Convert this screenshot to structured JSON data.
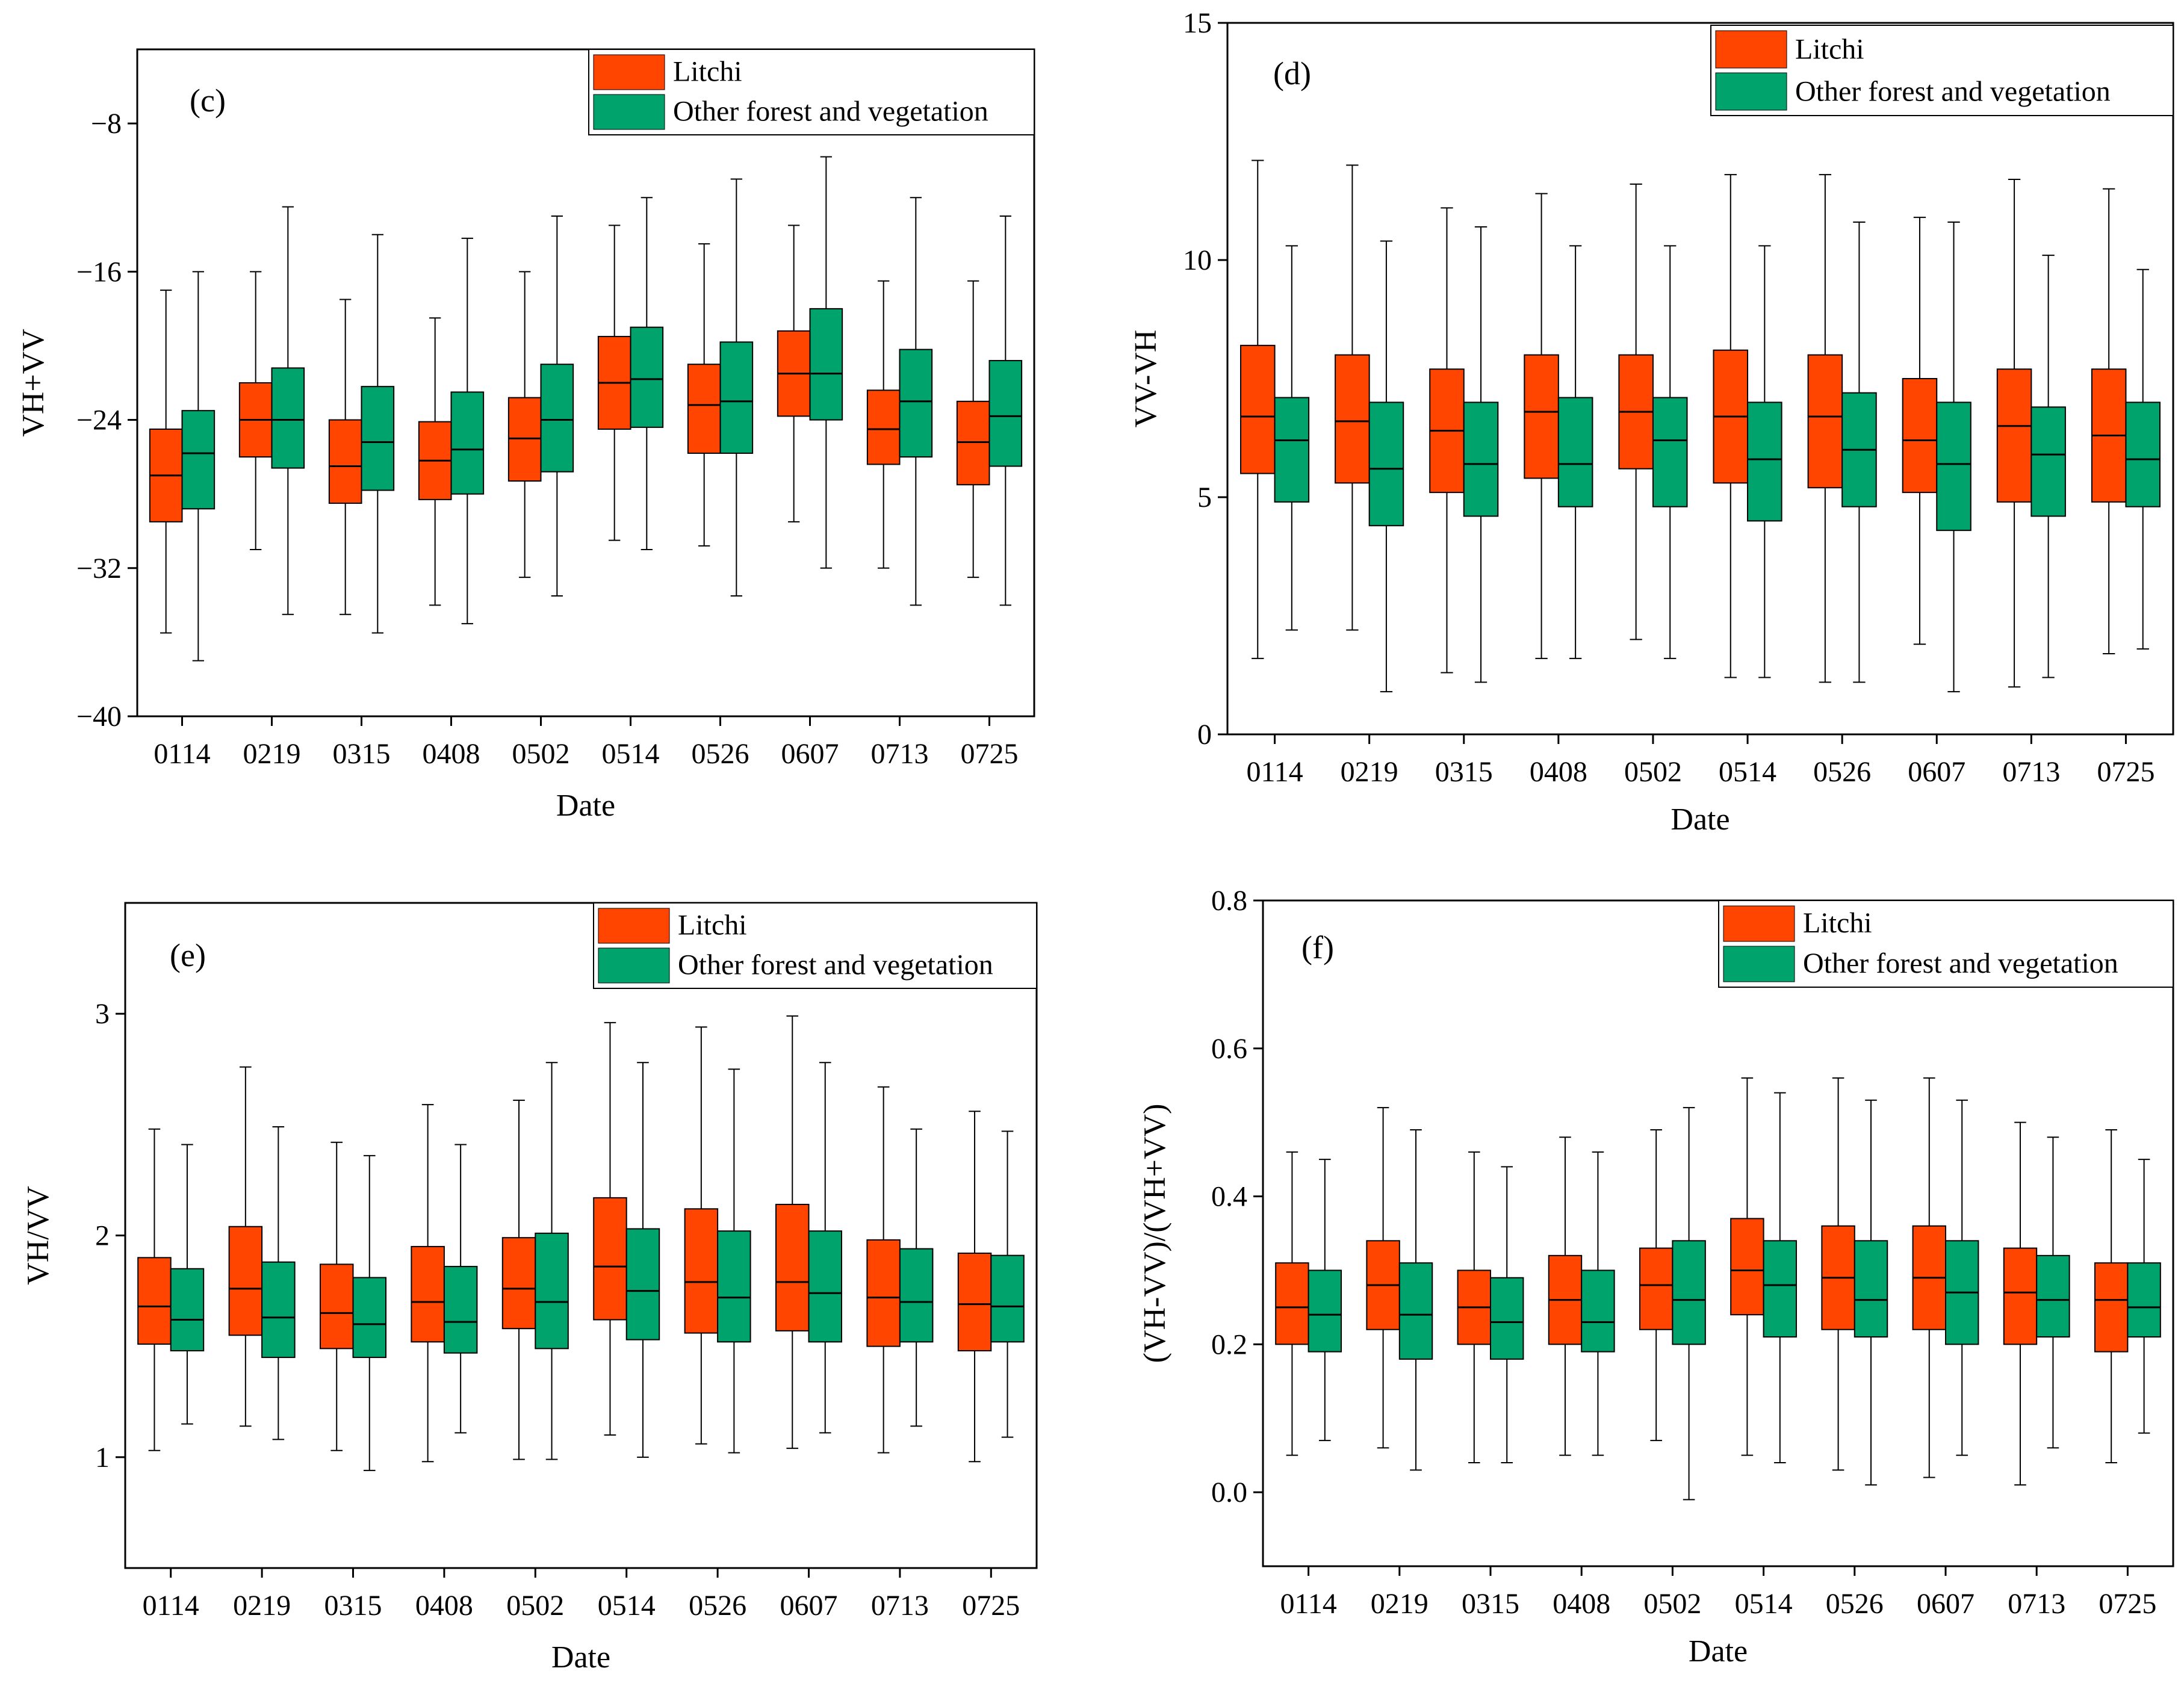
{
  "colors": {
    "litchi": "#FF4500",
    "other": "#00A36C",
    "axis": "#000000"
  },
  "legend": {
    "litchi": "Litchi",
    "other": "Other forest and vegetation"
  },
  "chart_data": [
    {
      "id": "c",
      "type": "box",
      "panel_label": "(c)",
      "xlabel": "Date",
      "ylabel": "VH+VV",
      "ylim": [
        -40,
        -4
      ],
      "yticks": [
        -40,
        -32,
        -24,
        -16,
        -8
      ],
      "categories": [
        "0114",
        "0219",
        "0315",
        "0408",
        "0502",
        "0514",
        "0526",
        "0607",
        "0713",
        "0725"
      ],
      "series": [
        {
          "name": "Litchi",
          "boxes": [
            {
              "min": -35.5,
              "q1": -29.5,
              "median": -27.0,
              "q3": -24.5,
              "max": -17.0
            },
            {
              "min": -31.0,
              "q1": -26.0,
              "median": -24.0,
              "q3": -22.0,
              "max": -16.0
            },
            {
              "min": -34.5,
              "q1": -28.5,
              "median": -26.5,
              "q3": -24.0,
              "max": -17.5
            },
            {
              "min": -34.0,
              "q1": -28.3,
              "median": -26.2,
              "q3": -24.1,
              "max": -18.5
            },
            {
              "min": -32.5,
              "q1": -27.3,
              "median": -25.0,
              "q3": -22.8,
              "max": -16.0
            },
            {
              "min": -30.5,
              "q1": -24.5,
              "median": -22.0,
              "q3": -19.5,
              "max": -13.5
            },
            {
              "min": -30.8,
              "q1": -25.8,
              "median": -23.2,
              "q3": -21.0,
              "max": -14.5
            },
            {
              "min": -29.5,
              "q1": -23.8,
              "median": -21.5,
              "q3": -19.2,
              "max": -13.5
            },
            {
              "min": -32.0,
              "q1": -26.4,
              "median": -24.5,
              "q3": -22.4,
              "max": -16.5
            },
            {
              "min": -32.5,
              "q1": -27.5,
              "median": -25.2,
              "q3": -23.0,
              "max": -16.5
            }
          ]
        },
        {
          "name": "Other forest and vegetation",
          "boxes": [
            {
              "min": -37.0,
              "q1": -28.8,
              "median": -25.8,
              "q3": -23.5,
              "max": -16.0
            },
            {
              "min": -34.5,
              "q1": -26.6,
              "median": -24.0,
              "q3": -21.2,
              "max": -12.5
            },
            {
              "min": -35.5,
              "q1": -27.8,
              "median": -25.2,
              "q3": -22.2,
              "max": -14.0
            },
            {
              "min": -35.0,
              "q1": -28.0,
              "median": -25.6,
              "q3": -22.5,
              "max": -14.2
            },
            {
              "min": -33.5,
              "q1": -26.8,
              "median": -24.0,
              "q3": -21.0,
              "max": -13.0
            },
            {
              "min": -31.0,
              "q1": -24.4,
              "median": -21.8,
              "q3": -19.0,
              "max": -12.0
            },
            {
              "min": -33.5,
              "q1": -25.8,
              "median": -23.0,
              "q3": -19.8,
              "max": -11.0
            },
            {
              "min": -32.0,
              "q1": -24.0,
              "median": -21.5,
              "q3": -18.0,
              "max": -9.8
            },
            {
              "min": -34.0,
              "q1": -26.0,
              "median": -23.0,
              "q3": -20.2,
              "max": -12.0
            },
            {
              "min": -34.0,
              "q1": -26.5,
              "median": -23.8,
              "q3": -20.8,
              "max": -13.0
            }
          ]
        }
      ]
    },
    {
      "id": "d",
      "type": "box",
      "panel_label": "(d)",
      "xlabel": "Date",
      "ylabel": "VV-VH",
      "ylim": [
        0,
        15
      ],
      "yticks": [
        0,
        5,
        10,
        15
      ],
      "categories": [
        "0114",
        "0219",
        "0315",
        "0408",
        "0502",
        "0514",
        "0526",
        "0607",
        "0713",
        "0725"
      ],
      "series": [
        {
          "name": "Litchi",
          "boxes": [
            {
              "min": 1.6,
              "q1": 5.5,
              "median": 6.7,
              "q3": 8.2,
              "max": 12.1
            },
            {
              "min": 2.2,
              "q1": 5.3,
              "median": 6.6,
              "q3": 8.0,
              "max": 12.0
            },
            {
              "min": 1.3,
              "q1": 5.1,
              "median": 6.4,
              "q3": 7.7,
              "max": 11.1
            },
            {
              "min": 1.6,
              "q1": 5.4,
              "median": 6.8,
              "q3": 8.0,
              "max": 11.4
            },
            {
              "min": 2.0,
              "q1": 5.6,
              "median": 6.8,
              "q3": 8.0,
              "max": 11.6
            },
            {
              "min": 1.2,
              "q1": 5.3,
              "median": 6.7,
              "q3": 8.1,
              "max": 11.8
            },
            {
              "min": 1.1,
              "q1": 5.2,
              "median": 6.7,
              "q3": 8.0,
              "max": 11.8
            },
            {
              "min": 1.9,
              "q1": 5.1,
              "median": 6.2,
              "q3": 7.5,
              "max": 10.9
            },
            {
              "min": 1.0,
              "q1": 4.9,
              "median": 6.5,
              "q3": 7.7,
              "max": 11.7
            },
            {
              "min": 1.7,
              "q1": 4.9,
              "median": 6.3,
              "q3": 7.7,
              "max": 11.5
            }
          ]
        },
        {
          "name": "Other forest and vegetation",
          "boxes": [
            {
              "min": 2.2,
              "q1": 4.9,
              "median": 6.2,
              "q3": 7.1,
              "max": 10.3
            },
            {
              "min": 0.9,
              "q1": 4.4,
              "median": 5.6,
              "q3": 7.0,
              "max": 10.4
            },
            {
              "min": 1.1,
              "q1": 4.6,
              "median": 5.7,
              "q3": 7.0,
              "max": 10.7
            },
            {
              "min": 1.6,
              "q1": 4.8,
              "median": 5.7,
              "q3": 7.1,
              "max": 10.3
            },
            {
              "min": 1.6,
              "q1": 4.8,
              "median": 6.2,
              "q3": 7.1,
              "max": 10.3
            },
            {
              "min": 1.2,
              "q1": 4.5,
              "median": 5.8,
              "q3": 7.0,
              "max": 10.3
            },
            {
              "min": 1.1,
              "q1": 4.8,
              "median": 6.0,
              "q3": 7.2,
              "max": 10.8
            },
            {
              "min": 0.9,
              "q1": 4.3,
              "median": 5.7,
              "q3": 7.0,
              "max": 10.8
            },
            {
              "min": 1.2,
              "q1": 4.6,
              "median": 5.9,
              "q3": 6.9,
              "max": 10.1
            },
            {
              "min": 1.8,
              "q1": 4.8,
              "median": 5.8,
              "q3": 7.0,
              "max": 9.8
            }
          ]
        }
      ]
    },
    {
      "id": "e",
      "type": "box",
      "panel_label": "(e)",
      "xlabel": "Date",
      "ylabel": "VH/VV",
      "ylim": [
        0.5,
        3.5
      ],
      "yticks": [
        1,
        2,
        3
      ],
      "categories": [
        "0114",
        "0219",
        "0315",
        "0408",
        "0502",
        "0514",
        "0526",
        "0607",
        "0713",
        "0725"
      ],
      "series": [
        {
          "name": "Litchi",
          "boxes": [
            {
              "min": 1.03,
              "q1": 1.51,
              "median": 1.68,
              "q3": 1.9,
              "max": 2.48
            },
            {
              "min": 1.14,
              "q1": 1.55,
              "median": 1.76,
              "q3": 2.04,
              "max": 2.76
            },
            {
              "min": 1.03,
              "q1": 1.49,
              "median": 1.65,
              "q3": 1.87,
              "max": 2.42
            },
            {
              "min": 0.98,
              "q1": 1.52,
              "median": 1.7,
              "q3": 1.95,
              "max": 2.59
            },
            {
              "min": 0.99,
              "q1": 1.58,
              "median": 1.76,
              "q3": 1.99,
              "max": 2.61
            },
            {
              "min": 1.1,
              "q1": 1.62,
              "median": 1.86,
              "q3": 2.17,
              "max": 2.96
            },
            {
              "min": 1.06,
              "q1": 1.56,
              "median": 1.79,
              "q3": 2.12,
              "max": 2.94
            },
            {
              "min": 1.04,
              "q1": 1.57,
              "median": 1.79,
              "q3": 2.14,
              "max": 2.99
            },
            {
              "min": 1.02,
              "q1": 1.5,
              "median": 1.72,
              "q3": 1.98,
              "max": 2.67
            },
            {
              "min": 0.98,
              "q1": 1.48,
              "median": 1.69,
              "q3": 1.92,
              "max": 2.56
            }
          ]
        },
        {
          "name": "Other forest and vegetation",
          "boxes": [
            {
              "min": 1.15,
              "q1": 1.48,
              "median": 1.62,
              "q3": 1.85,
              "max": 2.41
            },
            {
              "min": 1.08,
              "q1": 1.45,
              "median": 1.63,
              "q3": 1.88,
              "max": 2.49
            },
            {
              "min": 0.94,
              "q1": 1.45,
              "median": 1.6,
              "q3": 1.81,
              "max": 2.36
            },
            {
              "min": 1.11,
              "q1": 1.47,
              "median": 1.61,
              "q3": 1.86,
              "max": 2.41
            },
            {
              "min": 0.99,
              "q1": 1.49,
              "median": 1.7,
              "q3": 2.01,
              "max": 2.78
            },
            {
              "min": 1.0,
              "q1": 1.53,
              "median": 1.75,
              "q3": 2.03,
              "max": 2.78
            },
            {
              "min": 1.02,
              "q1": 1.52,
              "median": 1.72,
              "q3": 2.02,
              "max": 2.75
            },
            {
              "min": 1.11,
              "q1": 1.52,
              "median": 1.74,
              "q3": 2.02,
              "max": 2.78
            },
            {
              "min": 1.14,
              "q1": 1.52,
              "median": 1.7,
              "q3": 1.94,
              "max": 2.48
            },
            {
              "min": 1.09,
              "q1": 1.52,
              "median": 1.68,
              "q3": 1.91,
              "max": 2.47
            }
          ]
        }
      ]
    },
    {
      "id": "f",
      "type": "box",
      "panel_label": "(f)",
      "xlabel": "Date",
      "ylabel": "(VH-VV)/(VH+VV)",
      "ylim": [
        -0.1,
        0.8
      ],
      "yticks": [
        0.0,
        0.2,
        0.4,
        0.6,
        0.8
      ],
      "categories": [
        "0114",
        "0219",
        "0315",
        "0408",
        "0502",
        "0514",
        "0526",
        "0607",
        "0713",
        "0725"
      ],
      "series": [
        {
          "name": "Litchi",
          "boxes": [
            {
              "min": 0.05,
              "q1": 0.2,
              "median": 0.25,
              "q3": 0.31,
              "max": 0.46
            },
            {
              "min": 0.06,
              "q1": 0.22,
              "median": 0.28,
              "q3": 0.34,
              "max": 0.52
            },
            {
              "min": 0.04,
              "q1": 0.2,
              "median": 0.25,
              "q3": 0.3,
              "max": 0.46
            },
            {
              "min": 0.05,
              "q1": 0.2,
              "median": 0.26,
              "q3": 0.32,
              "max": 0.48
            },
            {
              "min": 0.07,
              "q1": 0.22,
              "median": 0.28,
              "q3": 0.33,
              "max": 0.49
            },
            {
              "min": 0.05,
              "q1": 0.24,
              "median": 0.3,
              "q3": 0.37,
              "max": 0.56
            },
            {
              "min": 0.03,
              "q1": 0.22,
              "median": 0.29,
              "q3": 0.36,
              "max": 0.56
            },
            {
              "min": 0.02,
              "q1": 0.22,
              "median": 0.29,
              "q3": 0.36,
              "max": 0.56
            },
            {
              "min": 0.01,
              "q1": 0.2,
              "median": 0.27,
              "q3": 0.33,
              "max": 0.5
            },
            {
              "min": 0.04,
              "q1": 0.19,
              "median": 0.26,
              "q3": 0.31,
              "max": 0.49
            }
          ]
        },
        {
          "name": "Other forest and vegetation",
          "boxes": [
            {
              "min": 0.07,
              "q1": 0.19,
              "median": 0.24,
              "q3": 0.3,
              "max": 0.45
            },
            {
              "min": 0.03,
              "q1": 0.18,
              "median": 0.24,
              "q3": 0.31,
              "max": 0.49
            },
            {
              "min": 0.04,
              "q1": 0.18,
              "median": 0.23,
              "q3": 0.29,
              "max": 0.44
            },
            {
              "min": 0.05,
              "q1": 0.19,
              "median": 0.23,
              "q3": 0.3,
              "max": 0.46
            },
            {
              "min": -0.01,
              "q1": 0.2,
              "median": 0.26,
              "q3": 0.34,
              "max": 0.52
            },
            {
              "min": 0.04,
              "q1": 0.21,
              "median": 0.28,
              "q3": 0.34,
              "max": 0.54
            },
            {
              "min": 0.01,
              "q1": 0.21,
              "median": 0.26,
              "q3": 0.34,
              "max": 0.53
            },
            {
              "min": 0.05,
              "q1": 0.2,
              "median": 0.27,
              "q3": 0.34,
              "max": 0.53
            },
            {
              "min": 0.06,
              "q1": 0.21,
              "median": 0.26,
              "q3": 0.32,
              "max": 0.48
            },
            {
              "min": 0.08,
              "q1": 0.21,
              "median": 0.25,
              "q3": 0.31,
              "max": 0.45
            }
          ]
        }
      ]
    }
  ]
}
